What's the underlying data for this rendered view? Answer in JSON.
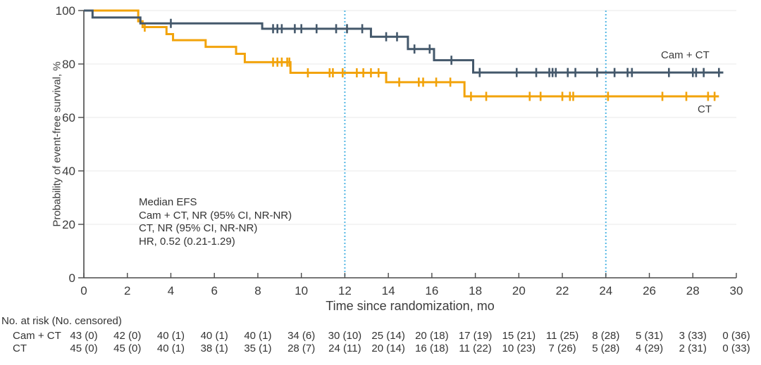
{
  "chart_data": {
    "type": "line",
    "subtype": "kaplan_meier_step",
    "title": "",
    "xlabel": "Time since randomization, mo",
    "ylabel": "Probability of event-free survival, %",
    "xlim": [
      0,
      30
    ],
    "x_ticks": [
      0,
      2,
      4,
      6,
      8,
      10,
      12,
      14,
      16,
      18,
      20,
      22,
      24,
      26,
      28,
      30
    ],
    "ylim": [
      0,
      100
    ],
    "y_ticks": [
      0,
      20,
      40,
      60,
      80,
      100
    ],
    "grid": "horizontal",
    "gridline_color": "#e9e9e9",
    "axis_color": "#4a4a4a",
    "tick_label_color": "#3c3c3c",
    "reference_lines_x": [
      12,
      24
    ],
    "reference_line_color": "#54b7e4",
    "series": [
      {
        "name": "Cam + CT",
        "color": "#44586b",
        "start": [
          0,
          100
        ],
        "steps": [
          [
            0.4,
            97.4
          ],
          [
            2.6,
            95.2
          ],
          [
            8.2,
            93.2
          ],
          [
            13.2,
            90.2
          ],
          [
            14.9,
            85.6
          ],
          [
            16.1,
            81.4
          ],
          [
            17.9,
            76.8
          ]
        ],
        "end_x": 29.4,
        "censor_marks": [
          [
            4.0,
            95.2
          ],
          [
            8.7,
            93.2
          ],
          [
            8.9,
            93.2
          ],
          [
            9.1,
            93.2
          ],
          [
            9.7,
            93.2
          ],
          [
            10.0,
            93.2
          ],
          [
            10.7,
            93.2
          ],
          [
            11.6,
            93.2
          ],
          [
            12.1,
            93.2
          ],
          [
            12.8,
            93.2
          ],
          [
            13.9,
            90.2
          ],
          [
            14.4,
            90.2
          ],
          [
            15.2,
            85.6
          ],
          [
            15.9,
            85.6
          ],
          [
            16.9,
            81.4
          ],
          [
            18.2,
            76.8
          ],
          [
            19.9,
            76.8
          ],
          [
            20.8,
            76.8
          ],
          [
            21.4,
            76.8
          ],
          [
            21.55,
            76.8
          ],
          [
            21.7,
            76.8
          ],
          [
            22.25,
            76.8
          ],
          [
            22.6,
            76.8
          ],
          [
            23.6,
            76.8
          ],
          [
            24.4,
            76.8
          ],
          [
            25.0,
            76.8
          ],
          [
            25.2,
            76.8
          ],
          [
            26.9,
            76.8
          ],
          [
            28.0,
            76.8
          ],
          [
            28.15,
            76.8
          ],
          [
            28.5,
            76.8
          ],
          [
            29.2,
            76.8
          ]
        ]
      },
      {
        "name": "CT",
        "color": "#f2a30b",
        "start": [
          0,
          100
        ],
        "steps": [
          [
            2.5,
            96.0
          ],
          [
            2.7,
            93.8
          ],
          [
            3.8,
            91.2
          ],
          [
            4.1,
            88.9
          ],
          [
            5.6,
            86.4
          ],
          [
            7.0,
            83.8
          ],
          [
            7.4,
            80.7
          ],
          [
            9.5,
            76.7
          ],
          [
            13.9,
            73.2
          ],
          [
            17.5,
            67.9
          ]
        ],
        "end_x": 29.2,
        "censor_marks": [
          [
            2.8,
            93.8
          ],
          [
            8.7,
            80.7
          ],
          [
            8.9,
            80.7
          ],
          [
            9.1,
            80.7
          ],
          [
            9.35,
            80.7
          ],
          [
            9.45,
            80.7
          ],
          [
            10.3,
            76.7
          ],
          [
            11.3,
            76.7
          ],
          [
            11.45,
            76.7
          ],
          [
            11.9,
            76.7
          ],
          [
            12.55,
            76.7
          ],
          [
            12.85,
            76.7
          ],
          [
            13.2,
            76.7
          ],
          [
            13.55,
            76.7
          ],
          [
            14.5,
            73.2
          ],
          [
            15.4,
            73.2
          ],
          [
            15.6,
            73.2
          ],
          [
            16.2,
            73.2
          ],
          [
            16.85,
            73.2
          ],
          [
            17.8,
            67.9
          ],
          [
            18.5,
            67.9
          ],
          [
            20.5,
            67.9
          ],
          [
            21.0,
            67.9
          ],
          [
            22.0,
            67.9
          ],
          [
            22.35,
            67.9
          ],
          [
            22.5,
            67.9
          ],
          [
            24.1,
            67.9
          ],
          [
            26.6,
            67.9
          ],
          [
            27.7,
            67.9
          ],
          [
            28.7,
            67.9
          ],
          [
            29.0,
            67.9
          ]
        ]
      }
    ],
    "annotation": {
      "lines": [
        "Median EFS",
        "Cam + CT, NR (95% CI, NR-NR)",
        "CT, NR (95% CI, NR-NR)",
        "HR, 0.52 (0.21-1.29)"
      ]
    },
    "legend_position": "curve-end-labels"
  },
  "risk_table": {
    "header": "No. at risk (No. censored)",
    "time_points": [
      0,
      2,
      4,
      6,
      8,
      10,
      12,
      14,
      16,
      18,
      20,
      22,
      24,
      26,
      28,
      30
    ],
    "rows": [
      {
        "label": "Cam + CT",
        "values": [
          "43 (0)",
          "42 (0)",
          "40 (1)",
          "40 (1)",
          "40 (1)",
          "34 (6)",
          "30 (10)",
          "25 (14)",
          "20 (18)",
          "17 (19)",
          "15 (21)",
          "11 (25)",
          "8 (28)",
          "5 (31)",
          "3 (33)",
          "0 (36)"
        ]
      },
      {
        "label": "CT",
        "values": [
          "45 (0)",
          "45 (0)",
          "40 (1)",
          "38 (1)",
          "35 (1)",
          "28 (7)",
          "24 (11)",
          "20 (14)",
          "16 (18)",
          "11 (22)",
          "10 (23)",
          "7 (26)",
          "5 (28)",
          "4 (29)",
          "2 (31)",
          "0 (33)"
        ]
      }
    ]
  }
}
